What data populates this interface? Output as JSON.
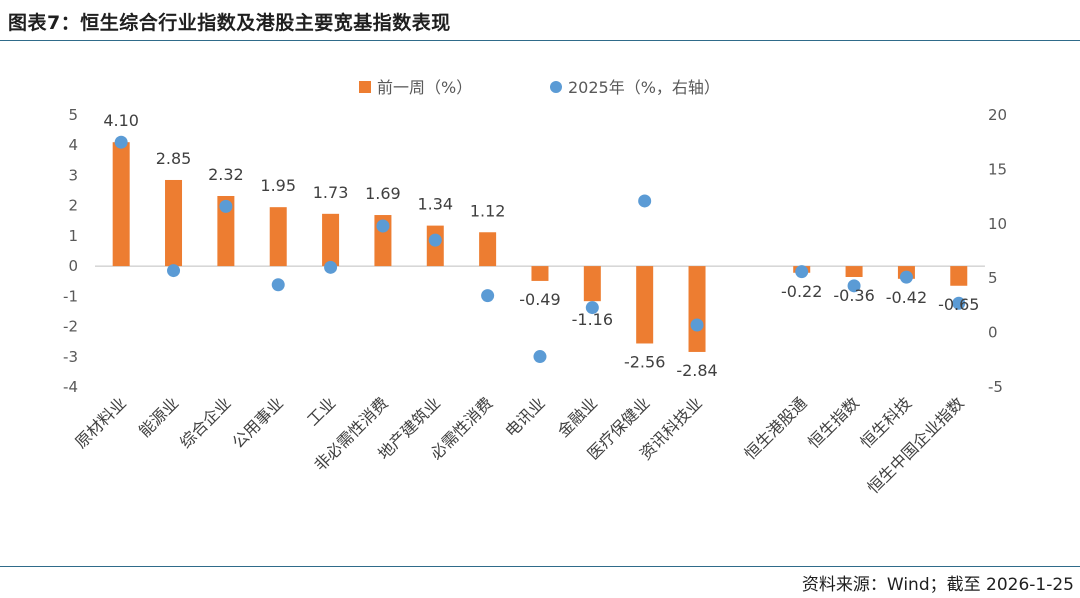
{
  "title": "图表7：恒生综合行业指数及港股主要宽基指数表现",
  "source": "资料来源：Wind；截至 2026-1-25",
  "colors": {
    "bar": "#ED7D31",
    "dot": "#5B9BD5",
    "rule": "#2f6b8a"
  },
  "chart_data": {
    "type": "bar",
    "categories": [
      "原材料业",
      "能源业",
      "综合企业",
      "公用事业",
      "工业",
      "非必需性消费",
      "地产建筑业",
      "必需性消费",
      "电讯业",
      "金融业",
      "医疗保健业",
      "资讯科技业",
      "",
      "恒生港股通",
      "恒生指数",
      "恒生科技",
      "恒生中国企业指数"
    ],
    "series": [
      {
        "name": "前一周（%）",
        "type": "bar",
        "axis": "left",
        "values": [
          4.1,
          2.85,
          2.32,
          1.95,
          1.73,
          1.69,
          1.34,
          1.12,
          -0.49,
          -1.16,
          -2.56,
          -2.84,
          null,
          -0.22,
          -0.36,
          -0.42,
          -0.65
        ],
        "labels": [
          "4.10",
          "2.85",
          "2.32",
          "1.95",
          "1.73",
          "1.69",
          "1.34",
          "1.12",
          "-0.49",
          "-1.16",
          "-2.56",
          "-2.84",
          null,
          "-0.22",
          "-0.36",
          "-0.42",
          "-0.65"
        ]
      },
      {
        "name": "2025年（%，右轴）",
        "type": "scatter",
        "axis": "right",
        "values": [
          17.5,
          5.7,
          11.6,
          4.4,
          6.0,
          9.8,
          8.5,
          3.4,
          -2.2,
          2.3,
          12.1,
          0.7,
          null,
          5.6,
          4.3,
          5.1,
          2.7
        ]
      }
    ],
    "y_left": {
      "min": -4,
      "max": 5,
      "ticks": [
        "5",
        "4",
        "3",
        "2",
        "1",
        "0",
        "-1",
        "-2",
        "-3",
        "-4"
      ]
    },
    "y_right": {
      "min": -5,
      "max": 20,
      "ticks": [
        "20",
        "15",
        "10",
        "5",
        "0",
        "-5"
      ]
    },
    "legend_position": "top-center",
    "grid": false
  }
}
